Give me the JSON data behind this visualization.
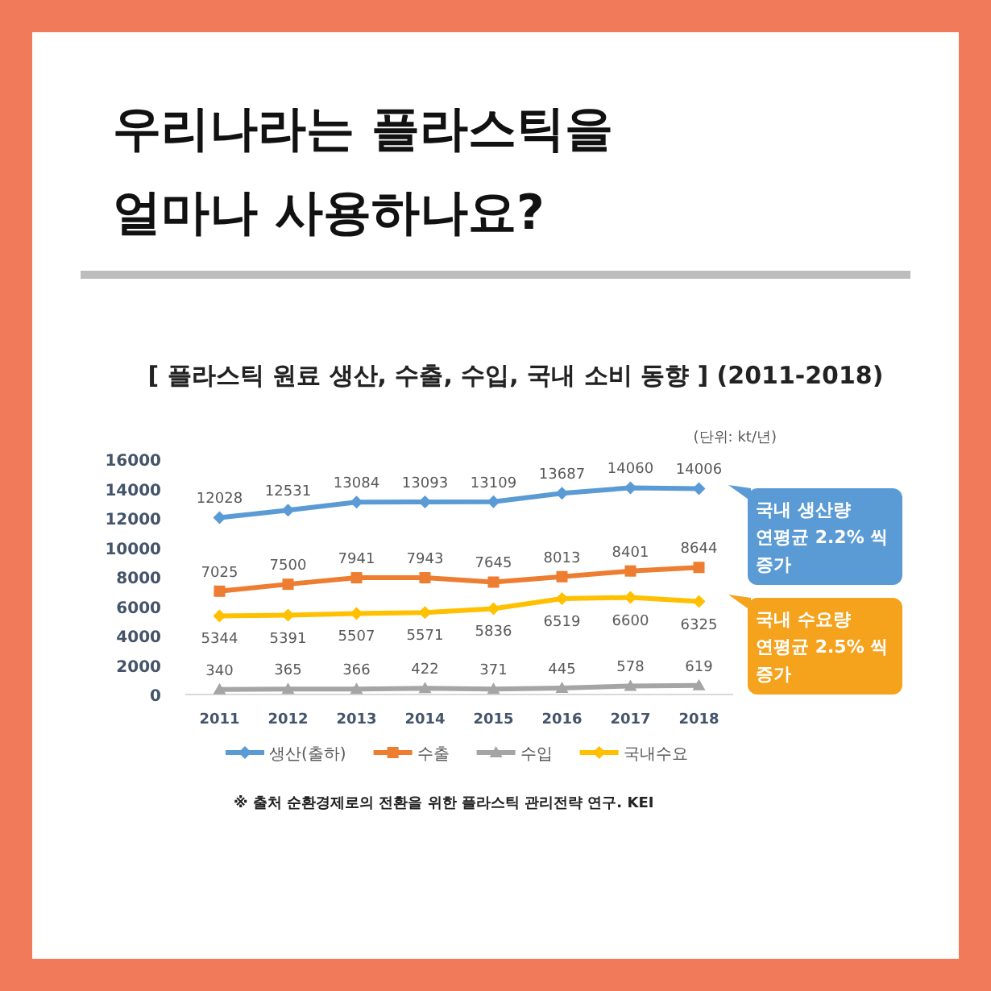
{
  "chart_data": {
    "type": "line",
    "title": "우리나라는 플라스틱을 얼마나 사용하나요?",
    "subtitle": "[ 플라스틱 원료 생산, 수출, 수입, 국내 소비 동향 ] (2011-2018)",
    "categories": [
      "2011",
      "2012",
      "2013",
      "2014",
      "2015",
      "2016",
      "2017",
      "2018"
    ],
    "series": [
      {
        "name": "생산(출하)",
        "color": "#5b9bd5",
        "marker": "diamond",
        "values": [
          12028,
          12531,
          13084,
          13093,
          13109,
          13687,
          14060,
          14006
        ]
      },
      {
        "name": "수출",
        "color": "#ed7d31",
        "marker": "square",
        "values": [
          7025,
          7500,
          7941,
          7943,
          7645,
          8013,
          8401,
          8644
        ]
      },
      {
        "name": "수입",
        "color": "#a5a5a5",
        "marker": "triangle",
        "values": [
          340,
          365,
          366,
          422,
          371,
          445,
          578,
          619
        ]
      },
      {
        "name": "국내수요",
        "color": "#ffc000",
        "marker": "diamond",
        "values": [
          5344,
          5391,
          5507,
          5571,
          5836,
          6519,
          6600,
          6325
        ]
      }
    ],
    "ylim": [
      0,
      16000
    ],
    "yticks": [
      0,
      2000,
      4000,
      6000,
      8000,
      10000,
      12000,
      14000,
      16000
    ],
    "data_labels": true,
    "legend": "bottom",
    "annotations": [
      "(단위: kt/년)",
      "국내 생산량 연평균 2.2% 씩 증가",
      "국내 수요량 연평균 2.5% 씩 증가",
      "※ 출처  순환경제로의 전환을 위한 플라스틱 관리전략 연구. KEI"
    ]
  }
}
